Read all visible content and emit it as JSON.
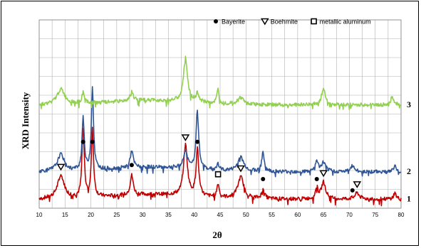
{
  "chart_data": {
    "type": "line",
    "xlabel": "2θ",
    "ylabel": "XRD Intensity",
    "xlim": [
      10,
      80
    ],
    "xticks": [
      10,
      15,
      20,
      25,
      30,
      35,
      40,
      45,
      50,
      55,
      60,
      65,
      70,
      75,
      80
    ],
    "grid": true,
    "legend": {
      "position": "top-right",
      "entries": [
        {
          "label": "Bayerite",
          "marker": "filled-circle"
        },
        {
          "label": "Boehmite",
          "marker": "open-triangle-down"
        },
        {
          "label": "metallic aluminum",
          "marker": "open-square"
        }
      ]
    },
    "series": [
      {
        "label": "1",
        "color": "#c00000",
        "baseline": 0.3,
        "peaks": [
          [
            14.2,
            0.75,
            0.8
          ],
          [
            18.5,
            2.4,
            0.25
          ],
          [
            20.3,
            2.2,
            0.25
          ],
          [
            27.9,
            0.65,
            0.35
          ],
          [
            38.3,
            1.65,
            0.45
          ],
          [
            40.6,
            1.55,
            0.3
          ],
          [
            44.6,
            0.45,
            0.25
          ],
          [
            49.0,
            0.7,
            0.7
          ],
          [
            53.3,
            0.35,
            0.3
          ],
          [
            63.7,
            0.35,
            0.3
          ],
          [
            65.0,
            0.55,
            0.5
          ],
          [
            71.5,
            0.2,
            0.5
          ],
          [
            78.8,
            0.2,
            0.3
          ]
        ]
      },
      {
        "label": "2",
        "color": "#2f5597",
        "baseline": 1.2,
        "peaks": [
          [
            14.2,
            0.55,
            0.8
          ],
          [
            18.5,
            1.75,
            0.25
          ],
          [
            20.3,
            2.7,
            0.25
          ],
          [
            27.9,
            0.55,
            0.35
          ],
          [
            38.3,
            0.55,
            0.45
          ],
          [
            40.6,
            1.95,
            0.3
          ],
          [
            44.6,
            0.2,
            0.25
          ],
          [
            49.0,
            0.45,
            0.7
          ],
          [
            53.3,
            0.6,
            0.3
          ],
          [
            63.7,
            0.35,
            0.3
          ],
          [
            65.0,
            0.3,
            0.5
          ],
          [
            70.6,
            0.2,
            0.4
          ],
          [
            78.8,
            0.2,
            0.3
          ]
        ]
      },
      {
        "label": "3",
        "color": "#92d050",
        "baseline": 3.4,
        "peaks": [
          [
            14.2,
            0.5,
            0.9
          ],
          [
            18.5,
            0.35,
            0.3
          ],
          [
            27.9,
            0.3,
            0.4
          ],
          [
            38.3,
            1.45,
            0.45
          ],
          [
            40.6,
            0.3,
            0.3
          ],
          [
            44.6,
            0.45,
            0.25
          ],
          [
            49.0,
            0.22,
            0.7
          ],
          [
            65.0,
            0.5,
            0.5
          ],
          [
            78.3,
            0.3,
            0.3
          ]
        ]
      }
    ],
    "annotations": [
      {
        "marker": "open-triangle-down",
        "x": 14.2,
        "series": "1"
      },
      {
        "marker": "filled-circle",
        "x": 18.5,
        "series": "1"
      },
      {
        "marker": "filled-circle",
        "x": 20.3,
        "series": "1"
      },
      {
        "marker": "filled-circle",
        "x": 27.9,
        "series": "1"
      },
      {
        "marker": "open-triangle-down",
        "x": 38.3,
        "series": "1"
      },
      {
        "marker": "filled-circle",
        "x": 40.6,
        "series": "1"
      },
      {
        "marker": "open-square",
        "x": 44.6,
        "series": "1"
      },
      {
        "marker": "open-triangle-down",
        "x": 49.0,
        "series": "1"
      },
      {
        "marker": "filled-circle",
        "x": 53.3,
        "series": "1"
      },
      {
        "marker": "filled-circle",
        "x": 63.7,
        "series": "1"
      },
      {
        "marker": "open-triangle-down",
        "x": 65.0,
        "series": "1"
      },
      {
        "marker": "filled-circle",
        "x": 70.6,
        "series": "1"
      },
      {
        "marker": "open-triangle-down",
        "x": 71.5,
        "series": "1"
      }
    ]
  }
}
